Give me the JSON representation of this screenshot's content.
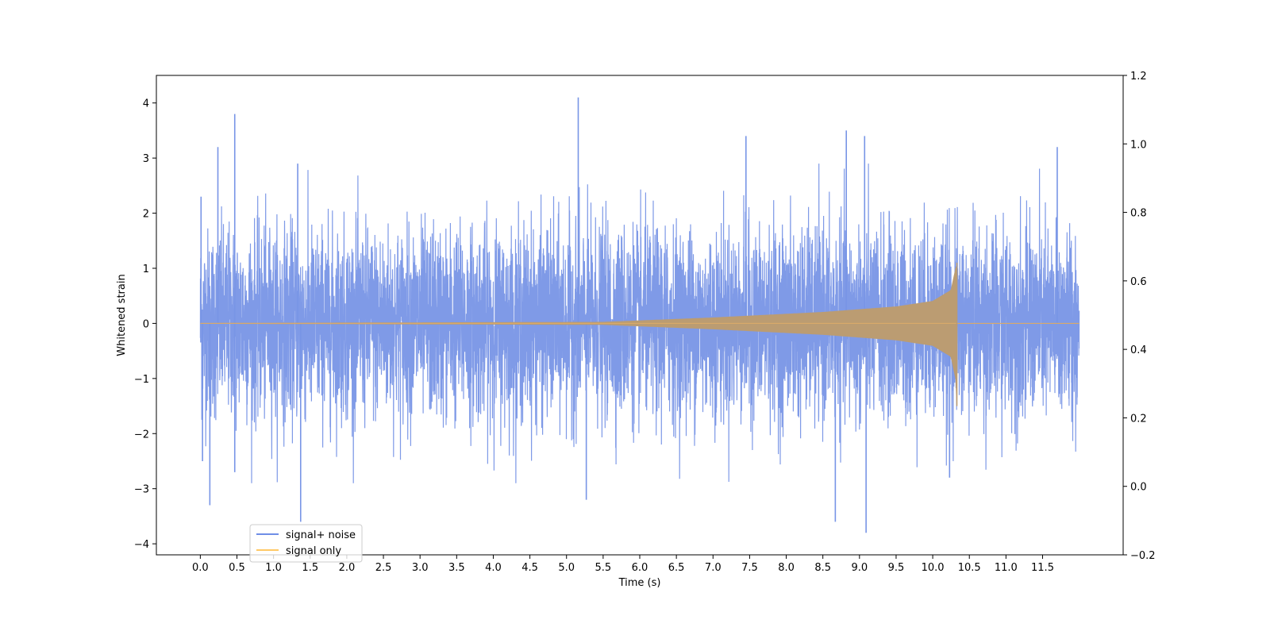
{
  "chart_data": {
    "type": "line",
    "xlabel": "Time (s)",
    "ylabel": "Whitened strain",
    "xlim": [
      -0.6,
      12.6
    ],
    "ylim": [
      -4.2,
      4.5
    ],
    "ylim_right": [
      -0.2,
      1.2
    ],
    "x_ticks": [
      "0.0",
      "0.5",
      "1.0",
      "1.5",
      "2.0",
      "2.5",
      "3.0",
      "3.5",
      "4.0",
      "4.5",
      "5.0",
      "5.5",
      "6.0",
      "6.5",
      "7.0",
      "7.5",
      "8.0",
      "8.5",
      "9.0",
      "9.5",
      "10.0",
      "10.5",
      "11.0",
      "11.5"
    ],
    "y_ticks_left": [
      "4",
      "3",
      "2",
      "1",
      "0",
      "−1",
      "−2",
      "−3",
      "−4"
    ],
    "y_ticks_right": [
      "1.2",
      "1.0",
      "0.8",
      "0.6",
      "0.4",
      "0.2",
      "0.0",
      "−0.2"
    ],
    "grid": false,
    "legend_position": "lower-left",
    "legend": [
      {
        "label": "signal+ noise",
        "color": "#6f8ee6"
      },
      {
        "label": "signal only",
        "color": "#ffc966"
      }
    ],
    "series": [
      {
        "name": "signal+ noise",
        "color": "#7895e6",
        "axis": "left",
        "description_values": "dense whitened noise, t=0.0..12.0 s",
        "t_range": [
          0.0,
          12.0
        ],
        "typical_envelope": [
          -1.5,
          1.5
        ],
        "peaks": [
          {
            "t": 0.01,
            "value": 2.3
          },
          {
            "t": 0.03,
            "value": -2.5
          },
          {
            "t": 0.13,
            "value": -3.3
          },
          {
            "t": 0.24,
            "value": 3.2
          },
          {
            "t": 0.47,
            "value": 3.8
          },
          {
            "t": 0.47,
            "value": -2.7
          },
          {
            "t": 1.33,
            "value": 2.9
          },
          {
            "t": 1.37,
            "value": -3.6
          },
          {
            "t": 5.16,
            "value": 4.1
          },
          {
            "t": 5.27,
            "value": -3.2
          },
          {
            "t": 7.45,
            "value": 3.4
          },
          {
            "t": 8.67,
            "value": -3.6
          },
          {
            "t": 8.82,
            "value": 3.5
          },
          {
            "t": 9.07,
            "value": 3.4
          },
          {
            "t": 9.09,
            "value": -3.8
          },
          {
            "t": 10.23,
            "value": -2.8
          },
          {
            "t": 11.7,
            "value": 3.2
          }
        ]
      },
      {
        "name": "signal only",
        "color": "#ffc966",
        "axis": "left",
        "description_values": "chirp, amplitude grows until merger then rings down",
        "t_range": [
          0.0,
          12.0
        ],
        "amplitude_at": [
          {
            "t": 0.0,
            "value": 0.0
          },
          {
            "t": 5.5,
            "value": 0.02
          },
          {
            "t": 7.0,
            "value": 0.1
          },
          {
            "t": 8.5,
            "value": 0.2
          },
          {
            "t": 9.5,
            "value": 0.3
          },
          {
            "t": 10.0,
            "value": 0.4
          },
          {
            "t": 10.25,
            "value": 0.6
          },
          {
            "t": 10.33,
            "value": 1.1
          }
        ],
        "merger_time": 10.33,
        "merger_min": -1.5
      }
    ]
  }
}
